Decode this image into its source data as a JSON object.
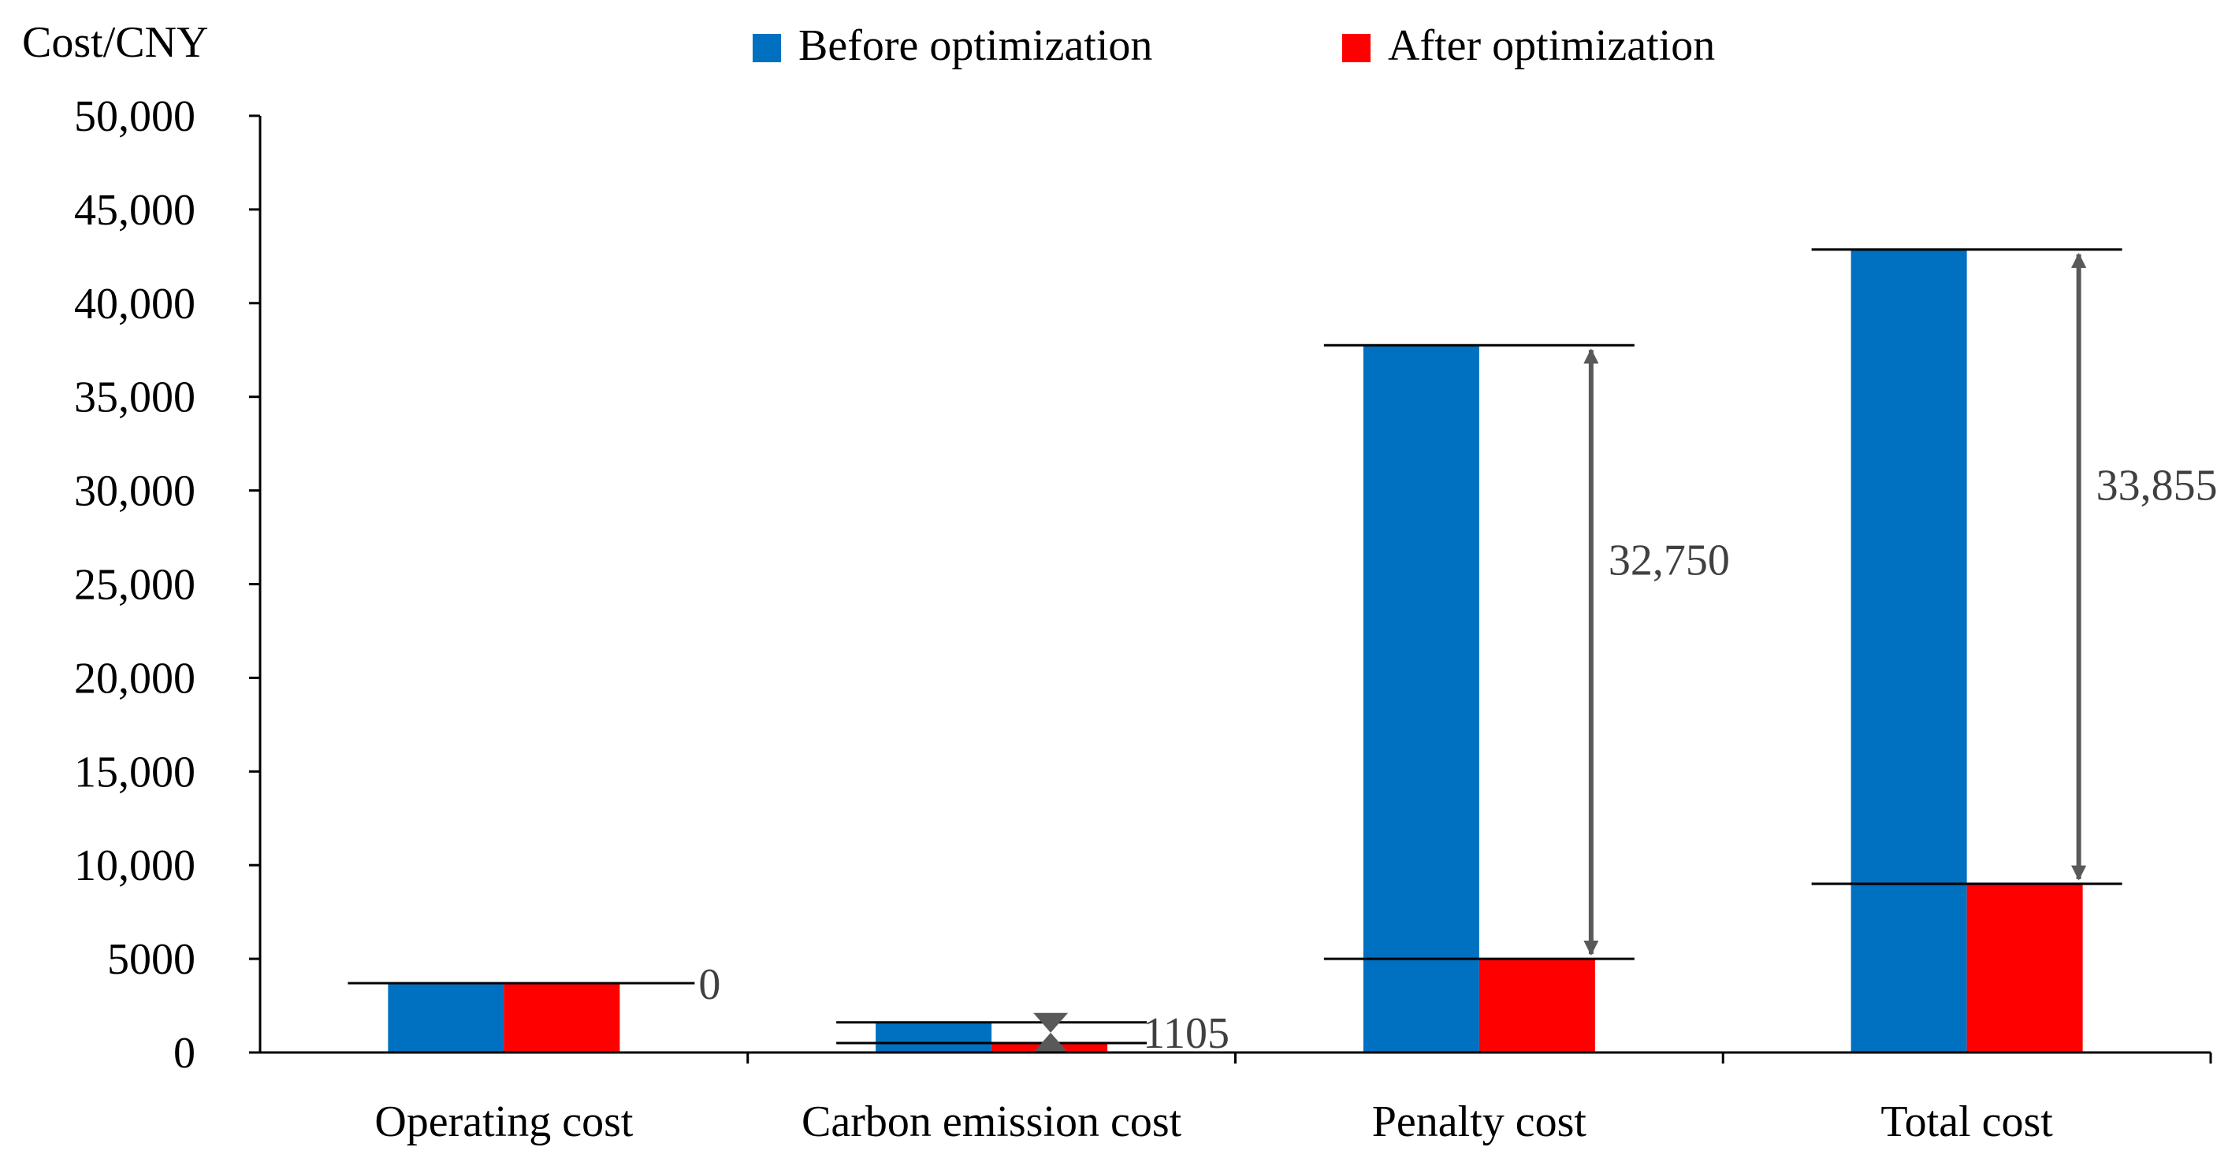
{
  "chart_data": {
    "type": "bar",
    "title": "",
    "ylabel": "Cost/CNY",
    "xlabel": "",
    "ylim": [
      0,
      50000
    ],
    "yticks": [
      0,
      5000,
      10000,
      15000,
      20000,
      25000,
      30000,
      35000,
      40000,
      45000,
      50000
    ],
    "ytick_labels": [
      "0",
      "5000",
      "10,000",
      "15,000",
      "20,000",
      "25,000",
      "30,000",
      "35,000",
      "40,000",
      "45,000",
      "50,000"
    ],
    "categories": [
      "Operating cost",
      "Carbon emission cost",
      "Penalty cost",
      "Total cost"
    ],
    "series": [
      {
        "name": "Before optimization",
        "color": "#0070C0",
        "values": [
          3700,
          1610,
          37750,
          42860
        ]
      },
      {
        "name": "After optimization",
        "color": "#FF0000",
        "values": [
          3700,
          505,
          5000,
          9005
        ]
      }
    ],
    "legend": {
      "position": "top",
      "entries": [
        "Before optimization",
        "After optimization"
      ]
    },
    "annotations": [
      {
        "category": "Operating cost",
        "label": "0",
        "value": 0
      },
      {
        "category": "Carbon emission cost",
        "label": "1105",
        "value": 1105
      },
      {
        "category": "Penalty cost",
        "label": "32,750",
        "value": 32750
      },
      {
        "category": "Total cost",
        "label": "33,855",
        "value": 33855
      }
    ],
    "grid": false
  }
}
